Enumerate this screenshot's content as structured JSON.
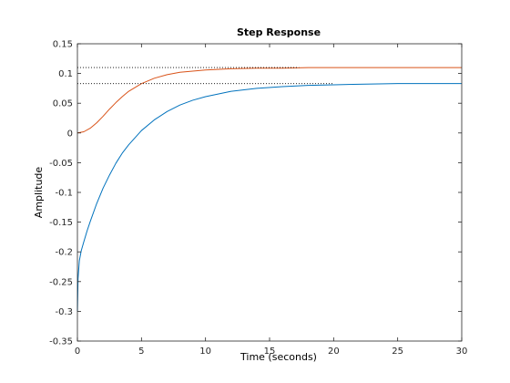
{
  "chart_data": {
    "type": "line",
    "title": "Step Response",
    "xlabel": "Time (seconds)",
    "ylabel": "Amplitude",
    "xlim": [
      0,
      30
    ],
    "ylim": [
      -0.35,
      0.15
    ],
    "xticks": [
      0,
      5,
      10,
      15,
      20,
      25,
      30
    ],
    "yticks": [
      -0.35,
      -0.3,
      -0.25,
      -0.2,
      -0.15,
      -0.1,
      -0.05,
      0,
      0.05,
      0.1,
      0.15
    ],
    "xtick_labels": [
      "0",
      "5",
      "10",
      "15",
      "20",
      "25",
      "30"
    ],
    "ytick_labels": [
      "-0.35",
      "-0.3",
      "-0.25",
      "-0.2",
      "-0.15",
      "-0.1",
      "-0.05",
      "0",
      "0.05",
      "0.1",
      "0.15"
    ],
    "grid": false,
    "series": [
      {
        "color": "#d95319",
        "x": [
          0,
          0.5,
          1,
          1.5,
          2,
          2.5,
          3,
          3.5,
          4,
          5,
          6,
          7,
          8,
          9,
          10,
          12,
          14,
          16,
          18,
          20,
          22,
          25,
          28,
          30
        ],
        "y": [
          0,
          0.002,
          0.008,
          0.017,
          0.028,
          0.04,
          0.051,
          0.061,
          0.07,
          0.083,
          0.092,
          0.098,
          0.102,
          0.104,
          0.106,
          0.108,
          0.109,
          0.109,
          0.11,
          0.11,
          0.11,
          0.11,
          0.11,
          0.11
        ]
      },
      {
        "color": "#0072bd",
        "x": [
          0,
          0.05,
          0.15,
          0.3,
          0.5,
          0.75,
          1,
          1.5,
          2,
          2.5,
          3,
          3.5,
          4,
          5,
          6,
          7,
          8,
          9,
          10,
          12,
          14,
          16,
          18,
          20,
          22,
          25,
          28,
          30
        ],
        "y": [
          -0.3,
          -0.245,
          -0.215,
          -0.198,
          -0.183,
          -0.165,
          -0.149,
          -0.119,
          -0.093,
          -0.071,
          -0.051,
          -0.034,
          -0.02,
          0.004,
          0.022,
          0.036,
          0.047,
          0.055,
          0.061,
          0.07,
          0.075,
          0.078,
          0.08,
          0.081,
          0.082,
          0.083,
          0.083,
          0.083
        ]
      }
    ],
    "reference_lines": [
      {
        "y": 0.11,
        "x_end": 17.3
      },
      {
        "y": 0.083,
        "x_end": 20.0
      }
    ]
  }
}
